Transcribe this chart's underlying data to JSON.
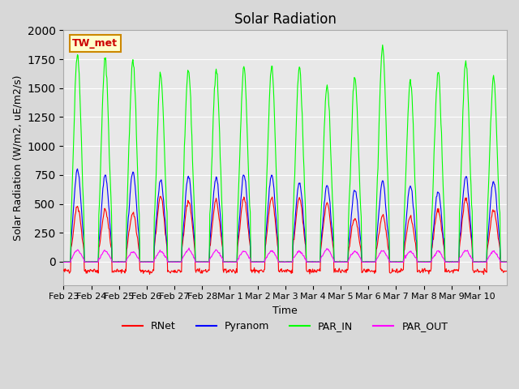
{
  "title": "Solar Radiation",
  "ylabel": "Solar Radiation (W/m2, uE/m2/s)",
  "xlabel": "Time",
  "ylim": [
    -200,
    2000
  ],
  "legend_label": "TW_met",
  "series": [
    "RNet",
    "Pyranom",
    "PAR_IN",
    "PAR_OUT"
  ],
  "colors": [
    "#ff0000",
    "#0000ff",
    "#00ff00",
    "#ff00ff"
  ],
  "n_days": 16,
  "x_tick_labels": [
    "Feb 23",
    "Feb 24",
    "Feb 25",
    "Feb 26",
    "Feb 27",
    "Feb 28",
    "Mar 1",
    "Mar 2",
    "Mar 3",
    "Mar 4",
    "Mar 5",
    "Mar 6",
    "Mar 7",
    "Mar 8",
    "Mar 9",
    "Mar 10"
  ],
  "par_peaks": [
    1800,
    1750,
    1730,
    1620,
    1660,
    1670,
    1670,
    1680,
    1680,
    1530,
    1600,
    1850,
    1560,
    1640,
    1730,
    1600
  ],
  "pyr_peaks": [
    800,
    750,
    770,
    710,
    740,
    730,
    750,
    750,
    690,
    660,
    620,
    700,
    660,
    600,
    740,
    700
  ],
  "rnet_peaks": [
    480,
    450,
    420,
    560,
    530,
    530,
    550,
    550,
    550,
    500,
    380,
    400,
    390,
    450,
    550,
    450
  ],
  "par_out_peaks": [
    100,
    95,
    85,
    90,
    105,
    100,
    90,
    95,
    90,
    110,
    90,
    95,
    90,
    90,
    100,
    90
  ]
}
